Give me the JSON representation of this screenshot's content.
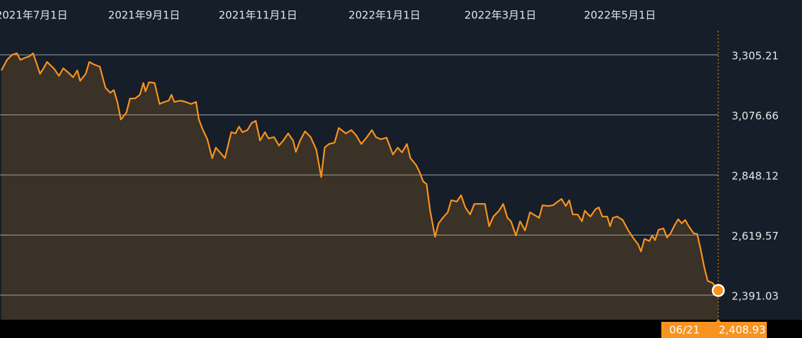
{
  "chart_data": {
    "type": "line",
    "xlim": [
      0,
      1020
    ],
    "xticks": [
      {
        "value": 43,
        "label": "2021年7月1日"
      },
      {
        "value": 203,
        "label": "2021年9月1日"
      },
      {
        "value": 365,
        "label": "2021年11月1日"
      },
      {
        "value": 545,
        "label": "2022年1月1日"
      },
      {
        "value": 710,
        "label": "2022年3月1日"
      },
      {
        "value": 880,
        "label": "2022年5月1日"
      }
    ],
    "ylim": [
      2297.5,
      3396.1
    ],
    "yticks": [
      {
        "value": 3305.21,
        "label": "3,305.21"
      },
      {
        "value": 3076.66,
        "label": "3,076.66"
      },
      {
        "value": 2848.12,
        "label": "2,848.12"
      },
      {
        "value": 2619.57,
        "label": "2,619.57"
      },
      {
        "value": 2391.03,
        "label": "2,391.03"
      }
    ],
    "grid": true,
    "series": [
      {
        "color": "#f7931e",
        "x": [
          0,
          8,
          15,
          22,
          27,
          32,
          40,
          45,
          50,
          55,
          60,
          65,
          70,
          75,
          82,
          88,
          95,
          102,
          108,
          112,
          120,
          125,
          132,
          140,
          148,
          155,
          160,
          165,
          170,
          178,
          183,
          190,
          197,
          202,
          205,
          210,
          218,
          225,
          232,
          238,
          242,
          246,
          255,
          262,
          270,
          277,
          281,
          286,
          293,
          300,
          305,
          312,
          318,
          327,
          333,
          338,
          343,
          350,
          356,
          362,
          368,
          375,
          380,
          388,
          395,
          401,
          408,
          415,
          419,
          425,
          432,
          440,
          448,
          455,
          460,
          466,
          474,
          480,
          490,
          498,
          505,
          512,
          520,
          527,
          533,
          540,
          548,
          557,
          564,
          570,
          577,
          582,
          590,
          595,
          600,
          605,
          610,
          617,
          622,
          628,
          635,
          640,
          648,
          654,
          660,
          667,
          673,
          680,
          688,
          694,
          700,
          708,
          714,
          720,
          725,
          732,
          738,
          745,
          752,
          757,
          765,
          770,
          778,
          785,
          790,
          797,
          803,
          808,
          813,
          820,
          826,
          830,
          838,
          845,
          850,
          855,
          862,
          866,
          870,
          876,
          884,
          892,
          900,
          906,
          910,
          915,
          922,
          926,
          930,
          935,
          942,
          947,
          952,
          958,
          963,
          968,
          973,
          978,
          985,
          990,
          995,
          1000,
          1005,
          1012,
          1020
        ],
        "values": [
          3246,
          3286,
          3305,
          3311,
          3286,
          3292,
          3300,
          3311,
          3273,
          3233,
          3254,
          3278,
          3265,
          3252,
          3225,
          3254,
          3238,
          3220,
          3246,
          3206,
          3233,
          3278,
          3268,
          3260,
          3180,
          3161,
          3171,
          3126,
          3059,
          3086,
          3139,
          3139,
          3153,
          3198,
          3166,
          3201,
          3198,
          3118,
          3126,
          3131,
          3153,
          3126,
          3131,
          3126,
          3118,
          3126,
          3059,
          3024,
          2984,
          2912,
          2952,
          2931,
          2912,
          3011,
          3006,
          3032,
          3011,
          3019,
          3046,
          3054,
          2979,
          3011,
          2987,
          2992,
          2960,
          2979,
          3006,
          2979,
          2936,
          2979,
          3014,
          2992,
          2944,
          2840,
          2952,
          2966,
          2971,
          3027,
          3006,
          3019,
          2998,
          2966,
          2992,
          3019,
          2992,
          2984,
          2990,
          2926,
          2952,
          2934,
          2966,
          2912,
          2886,
          2859,
          2824,
          2813,
          2712,
          2613,
          2664,
          2685,
          2706,
          2752,
          2747,
          2771,
          2725,
          2698,
          2738,
          2738,
          2738,
          2653,
          2690,
          2712,
          2738,
          2685,
          2672,
          2618,
          2672,
          2637,
          2706,
          2698,
          2685,
          2733,
          2730,
          2733,
          2744,
          2757,
          2730,
          2752,
          2698,
          2698,
          2672,
          2712,
          2690,
          2717,
          2725,
          2690,
          2690,
          2653,
          2685,
          2690,
          2677,
          2637,
          2605,
          2584,
          2557,
          2605,
          2597,
          2618,
          2600,
          2640,
          2645,
          2610,
          2626,
          2658,
          2680,
          2664,
          2677,
          2653,
          2626,
          2624,
          2565,
          2498,
          2445,
          2437,
          2408.93
        ]
      }
    ],
    "last_point": {
      "date": "06/21",
      "value_label": "2,408.93"
    }
  }
}
